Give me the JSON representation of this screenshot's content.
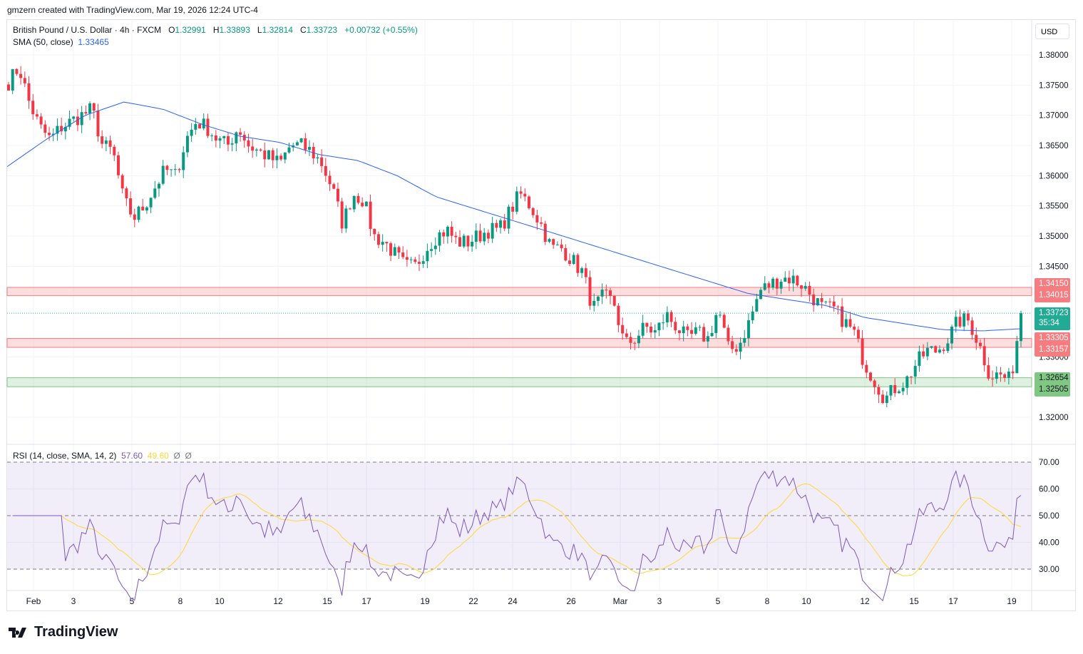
{
  "credit": "gmzern created with TradingView.com, Mar 19, 2026 12:24 UTC-4",
  "legend": {
    "symbol": "British Pound / U.S. Dollar · 4h · FXCM",
    "o_label": "O",
    "o": "1.32991",
    "h_label": "H",
    "h": "1.33893",
    "l_label": "L",
    "l": "1.32814",
    "c_label": "C",
    "c": "1.33723",
    "change": "+0.00732 (+0.55%)",
    "sma_label": "SMA (50, close)",
    "sma_value": "1.33465",
    "rsi_label": "RSI (14, close, SMA, 14, 2)",
    "rsi_value": "57.60",
    "rsi_sma_value": "49.60",
    "rsi_na1": "Ø",
    "rsi_na2": "Ø"
  },
  "currency": "USD",
  "tags": {
    "r1a": "1.34150",
    "r1b": "1.34015",
    "price": "1.33723",
    "countdown": "35:34",
    "r2a": "1.33305",
    "r2b": "1.33157",
    "s1a": "1.32654",
    "s1b": "1.32505"
  },
  "brand": "TradingView",
  "colors": {
    "up": "#089981",
    "down": "#f23645",
    "sma": "#2962ff",
    "rsi": "#7e57c2",
    "rsi_sma": "#fdd835",
    "res_zone": "#f77c80",
    "sup_zone": "#81c784"
  },
  "chart_data": {
    "type": "candlestick",
    "title": "British Pound / U.S. Dollar · 4h · FXCM",
    "price_ticks": [
      "1.38000",
      "1.37500",
      "1.37000",
      "1.36500",
      "1.36000",
      "1.35500",
      "1.35000",
      "1.34500",
      "1.33000",
      "1.32000"
    ],
    "ylim": [
      1.3165,
      1.3845
    ],
    "rsi_ticks": [
      "70.00",
      "60.00",
      "50.00",
      "40.00",
      "30.00"
    ],
    "rsi_lim": [
      22,
      80
    ],
    "x_labels": [
      "Feb",
      "3",
      "5",
      "8",
      "10",
      "12",
      "15",
      "17",
      "19",
      "22",
      "24",
      "26",
      "Mar",
      "3",
      "5",
      "8",
      "10",
      "12",
      "15",
      "17",
      "19"
    ],
    "close_path": [
      1.3755,
      1.378,
      1.372,
      1.368,
      1.366,
      1.368,
      1.369,
      1.37,
      1.371,
      1.365,
      1.364,
      1.356,
      1.353,
      1.355,
      1.358,
      1.361,
      1.36,
      1.366,
      1.369,
      1.368,
      1.366,
      1.365,
      1.368,
      1.365,
      1.364,
      1.363,
      1.362,
      1.365,
      1.365,
      1.364,
      1.362,
      1.358,
      1.352,
      1.357,
      1.356,
      1.35,
      1.349,
      1.347,
      1.345,
      1.345,
      1.348,
      1.35,
      1.351,
      1.349,
      1.349,
      1.35,
      1.351,
      1.351,
      1.354,
      1.357,
      1.355,
      1.352,
      1.348,
      1.348,
      1.346,
      1.344,
      1.338,
      1.34,
      1.339,
      1.332,
      1.333,
      1.335,
      1.334,
      1.337,
      1.335,
      1.333,
      1.334,
      1.333,
      1.338,
      1.331,
      1.332,
      1.336,
      1.341,
      1.342,
      1.343,
      1.343,
      1.342,
      1.34,
      1.338,
      1.338,
      1.336,
      1.334,
      1.329,
      1.326,
      1.323,
      1.325,
      1.326,
      1.329,
      1.331,
      1.331,
      1.333,
      1.336,
      1.336,
      1.332,
      1.327,
      1.327,
      1.326,
      1.33723
    ],
    "sma_path": [
      1.3615,
      1.366,
      1.37,
      1.3722,
      1.371,
      1.3685,
      1.3665,
      1.3655,
      1.3635,
      1.3625,
      1.36,
      1.3565,
      1.3545,
      1.3525,
      1.3505,
      1.3485,
      1.3465,
      1.3445,
      1.3425,
      1.3405,
      1.3395,
      1.3385,
      1.3365,
      1.3355,
      1.3345,
      1.3343,
      1.33465
    ],
    "zones": [
      {
        "type": "resistance",
        "from": 1.34015,
        "to": 1.3415
      },
      {
        "type": "resistance",
        "from": 1.33157,
        "to": 1.33305
      },
      {
        "type": "support",
        "from": 1.32505,
        "to": 1.32654
      }
    ],
    "last_price": 1.33723
  }
}
